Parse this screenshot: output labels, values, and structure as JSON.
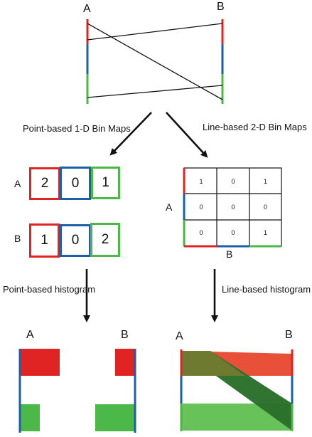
{
  "colors": {
    "red": "#e02424",
    "blue": "#1d5fa8",
    "green": "#4cb848",
    "dark_green": "#2a6e2a",
    "olive": "#6e7a30",
    "light_green": "#67c25a",
    "ink": "#111111"
  },
  "parallel_coords": {
    "axis_a": "A",
    "axis_b": "B"
  },
  "captions": {
    "point_bin_maps": "Point-based 1-D Bin Maps",
    "line_bin_maps": "Line-based 2-D Bin Maps",
    "point_histogram": "Point-based histogram",
    "line_histogram": "Line-based histogram"
  },
  "point_bins": {
    "row_a_label": "A",
    "row_b_label": "B",
    "a_values": [
      "2",
      "0",
      "1"
    ],
    "b_values": [
      "1",
      "0",
      "2"
    ]
  },
  "line_bins": {
    "axis_a_label": "A",
    "axis_b_label": "B",
    "grid": [
      [
        "1",
        "0",
        "1"
      ],
      [
        "0",
        "0",
        "0"
      ],
      [
        "0",
        "0",
        "1"
      ]
    ]
  },
  "point_histogram": {
    "axis_a": "A",
    "axis_b": "B",
    "a_counts": [
      2,
      0,
      1
    ],
    "b_counts": [
      1,
      0,
      2
    ]
  },
  "line_histogram": {
    "axis_a": "A",
    "axis_b": "B"
  }
}
